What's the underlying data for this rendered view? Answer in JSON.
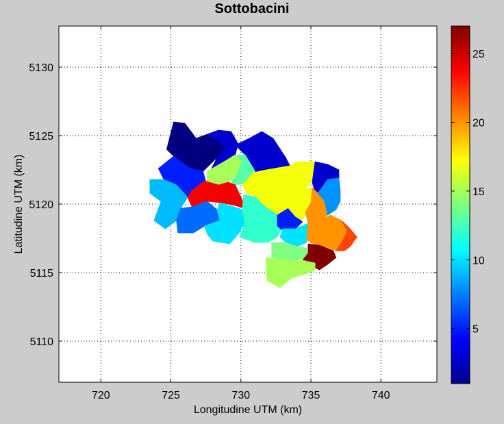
{
  "chart_data": {
    "type": "heatmap",
    "title": "Sottobacini",
    "xlabel": "Longitudine UTM (km)",
    "ylabel": "Latitudine UTM (km)",
    "xlim": [
      717,
      744
    ],
    "ylim": [
      5107,
      5133
    ],
    "xticks": [
      720,
      725,
      730,
      735,
      740
    ],
    "yticks": [
      5110,
      5115,
      5120,
      5125,
      5130
    ],
    "grid": true,
    "colorbar": {
      "colormap": "jet",
      "range": [
        1,
        27
      ],
      "ticks": [
        5,
        10,
        15,
        20,
        25
      ]
    },
    "regions": [
      {
        "id": 1,
        "value": 1,
        "polygon": [
          [
            725.2,
            5126
          ],
          [
            726,
            5125.9
          ],
          [
            726.8,
            5124.8
          ],
          [
            727.6,
            5125.1
          ],
          [
            728.6,
            5125.2
          ],
          [
            728.9,
            5124.2
          ],
          [
            728.3,
            5123.4
          ],
          [
            727.3,
            5122.4
          ],
          [
            726.4,
            5122.6
          ],
          [
            725.2,
            5123.5
          ],
          [
            724.7,
            5124
          ]
        ]
      },
      {
        "id": 2,
        "value": 3,
        "polygon": [
          [
            727.6,
            5125.1
          ],
          [
            728.4,
            5125.4
          ],
          [
            729.3,
            5125.3
          ],
          [
            729.8,
            5124.4
          ],
          [
            729.6,
            5123.6
          ],
          [
            728.8,
            5123.1
          ],
          [
            727.9,
            5122.6
          ],
          [
            728.3,
            5123.4
          ],
          [
            728.9,
            5124.2
          ]
        ]
      },
      {
        "id": 3,
        "value": 3,
        "polygon": [
          [
            729.6,
            5124.3
          ],
          [
            730.6,
            5124.8
          ],
          [
            731.5,
            5125.3
          ],
          [
            732.3,
            5124.8
          ],
          [
            733.2,
            5123.4
          ],
          [
            733.5,
            5122.8
          ],
          [
            732.8,
            5122.4
          ],
          [
            731.2,
            5122
          ],
          [
            730.9,
            5122.6
          ],
          [
            730.3,
            5123.6
          ]
        ]
      },
      {
        "id": 4,
        "value": 5,
        "polygon": [
          [
            724.1,
            5122.6
          ],
          [
            725.2,
            5123.5
          ],
          [
            726.4,
            5122.6
          ],
          [
            727.3,
            5122.4
          ],
          [
            727.6,
            5121.2
          ],
          [
            727,
            5120.8
          ],
          [
            726.2,
            5120.5
          ],
          [
            725.4,
            5121.4
          ],
          [
            724.5,
            5121.8
          ]
        ]
      },
      {
        "id": 5,
        "value": 15,
        "polygon": [
          [
            727.6,
            5122.4
          ],
          [
            728.8,
            5123.1
          ],
          [
            729.6,
            5123.6
          ],
          [
            730.1,
            5123.1
          ],
          [
            729.7,
            5122.1
          ],
          [
            729.1,
            5121.6
          ],
          [
            728.2,
            5121.4
          ],
          [
            727.6,
            5121.7
          ]
        ]
      },
      {
        "id": 6,
        "value": 13,
        "polygon": [
          [
            729.7,
            5123.6
          ],
          [
            730.3,
            5123.6
          ],
          [
            730.9,
            5122.6
          ],
          [
            731.2,
            5122
          ],
          [
            730.2,
            5121.5
          ],
          [
            729.6,
            5121.4
          ],
          [
            729.3,
            5121.6
          ],
          [
            729.7,
            5122.1
          ],
          [
            730.1,
            5123.1
          ]
        ]
      },
      {
        "id": 7,
        "value": 17,
        "polygon": [
          [
            730.9,
            5122.3
          ],
          [
            731.8,
            5122.5
          ],
          [
            733.5,
            5122.8
          ],
          [
            734,
            5123.1
          ],
          [
            735.3,
            5123.1
          ],
          [
            735.2,
            5121.8
          ],
          [
            734.6,
            5121.1
          ],
          [
            733.9,
            5120.6
          ],
          [
            733.4,
            5119.7
          ],
          [
            732.6,
            5119.2
          ],
          [
            731.5,
            5120
          ],
          [
            731.1,
            5120.5
          ],
          [
            730.4,
            5120.8
          ],
          [
            730.1,
            5121.4
          ]
        ]
      },
      {
        "id": 8,
        "value": 3,
        "polygon": [
          [
            735.3,
            5123.1
          ],
          [
            736.2,
            5122.9
          ],
          [
            737,
            5122.5
          ],
          [
            737,
            5121.9
          ],
          [
            736.4,
            5121.8
          ],
          [
            736,
            5121
          ],
          [
            735.3,
            5120.8
          ],
          [
            735.1,
            5121.6
          ]
        ]
      },
      {
        "id": 9,
        "value": 9,
        "polygon": [
          [
            723.5,
            5121.8
          ],
          [
            724.5,
            5121.8
          ],
          [
            725.4,
            5121.4
          ],
          [
            726.2,
            5120.5
          ],
          [
            725.7,
            5119.7
          ],
          [
            725.4,
            5118.8
          ],
          [
            724.6,
            5118.2
          ],
          [
            723.8,
            5118.8
          ],
          [
            724.3,
            5120.2
          ],
          [
            723.5,
            5120.8
          ]
        ]
      },
      {
        "id": 10,
        "value": 24,
        "polygon": [
          [
            726.5,
            5121
          ],
          [
            727.4,
            5121.7
          ],
          [
            728.4,
            5121.4
          ],
          [
            729.1,
            5121.6
          ],
          [
            729.6,
            5121.4
          ],
          [
            730.1,
            5120.3
          ],
          [
            730.2,
            5119.7
          ],
          [
            729.6,
            5119.9
          ],
          [
            728.6,
            5120.1
          ],
          [
            727.6,
            5120.2
          ],
          [
            726.5,
            5119.8
          ],
          [
            726.2,
            5120.5
          ]
        ]
      },
      {
        "id": 11,
        "value": 7,
        "polygon": [
          [
            726.5,
            5119.8
          ],
          [
            727.6,
            5120.2
          ],
          [
            728.3,
            5119.6
          ],
          [
            728.5,
            5118.8
          ],
          [
            727.4,
            5118.4
          ],
          [
            726.6,
            5117.9
          ],
          [
            725.5,
            5117.9
          ],
          [
            725.4,
            5118.8
          ],
          [
            725.7,
            5119.7
          ]
        ]
      },
      {
        "id": 12,
        "value": 10,
        "polygon": [
          [
            728.5,
            5120.1
          ],
          [
            729.5,
            5119.8
          ],
          [
            730.1,
            5119.6
          ],
          [
            730.3,
            5118.6
          ],
          [
            729.8,
            5117.8
          ],
          [
            729.2,
            5117.1
          ],
          [
            728,
            5117.3
          ],
          [
            727.6,
            5117.8
          ],
          [
            727.4,
            5118.4
          ],
          [
            728.5,
            5118.8
          ],
          [
            728.3,
            5119.6
          ]
        ]
      },
      {
        "id": 13,
        "value": 12,
        "polygon": [
          [
            730.2,
            5120.7
          ],
          [
            731.1,
            5120.5
          ],
          [
            731.5,
            5120
          ],
          [
            732.6,
            5119.2
          ],
          [
            733,
            5118.4
          ],
          [
            732.6,
            5117.6
          ],
          [
            731.9,
            5117.2
          ],
          [
            731,
            5117.2
          ],
          [
            729.9,
            5117.6
          ],
          [
            730.3,
            5118.6
          ],
          [
            730.1,
            5119.6
          ]
        ]
      },
      {
        "id": 14,
        "value": 5,
        "polygon": [
          [
            732.6,
            5119.2
          ],
          [
            733.4,
            5119.7
          ],
          [
            733.9,
            5119.1
          ],
          [
            734.4,
            5118.7
          ],
          [
            733.9,
            5118.2
          ],
          [
            733.1,
            5118
          ],
          [
            732.6,
            5118.4
          ]
        ]
      },
      {
        "id": 15,
        "value": 17,
        "polygon": [
          [
            733.9,
            5120.6
          ],
          [
            734.6,
            5121.1
          ],
          [
            735.2,
            5121.2
          ],
          [
            735,
            5120.1
          ],
          [
            734.7,
            5119.5
          ],
          [
            734.4,
            5118.8
          ],
          [
            733.9,
            5119.1
          ],
          [
            733.4,
            5119.7
          ]
        ]
      },
      {
        "id": 16,
        "value": 20,
        "polygon": [
          [
            735.1,
            5121.2
          ],
          [
            735.5,
            5120.8
          ],
          [
            736,
            5120.2
          ],
          [
            736.2,
            5119.2
          ],
          [
            735.6,
            5118.8
          ],
          [
            734.8,
            5118.6
          ],
          [
            734.6,
            5119.4
          ],
          [
            735,
            5120.1
          ]
        ]
      },
      {
        "id": 17,
        "value": 8,
        "polygon": [
          [
            736.2,
            5121.8
          ],
          [
            737,
            5121.9
          ],
          [
            737.1,
            5121
          ],
          [
            737.1,
            5120.2
          ],
          [
            736.8,
            5119.6
          ],
          [
            736.2,
            5119.2
          ],
          [
            736,
            5120.2
          ],
          [
            735.5,
            5120.8
          ]
        ]
      },
      {
        "id": 18,
        "value": 10,
        "polygon": [
          [
            733,
            5118.2
          ],
          [
            733.9,
            5118.2
          ],
          [
            734.8,
            5118.6
          ],
          [
            734.8,
            5117.8
          ],
          [
            734.7,
            5117.2
          ],
          [
            734,
            5116.9
          ],
          [
            733.2,
            5117.2
          ],
          [
            732.8,
            5117.6
          ]
        ]
      },
      {
        "id": 19,
        "value": 20,
        "polygon": [
          [
            734.8,
            5118.6
          ],
          [
            735.6,
            5118.8
          ],
          [
            736.4,
            5119.2
          ],
          [
            737.2,
            5118.8
          ],
          [
            737.6,
            5118
          ],
          [
            737.2,
            5117.2
          ],
          [
            736.8,
            5116.6
          ],
          [
            736,
            5116.9
          ],
          [
            735.2,
            5117.1
          ],
          [
            734.7,
            5117.4
          ]
        ]
      },
      {
        "id": 20,
        "value": 22,
        "polygon": [
          [
            737.2,
            5118.8
          ],
          [
            737.8,
            5118.2
          ],
          [
            738.3,
            5117.6
          ],
          [
            737.8,
            5116.9
          ],
          [
            737.4,
            5116.6
          ],
          [
            736.8,
            5116.6
          ],
          [
            737.2,
            5117.2
          ],
          [
            737.6,
            5118
          ]
        ]
      },
      {
        "id": 21,
        "value": 14,
        "polygon": [
          [
            732.2,
            5117.2
          ],
          [
            733.2,
            5117.2
          ],
          [
            734,
            5116.9
          ],
          [
            734.7,
            5116.8
          ],
          [
            734.8,
            5116.1
          ],
          [
            733.8,
            5115.9
          ],
          [
            733,
            5115.9
          ],
          [
            732.2,
            5116.1
          ]
        ]
      },
      {
        "id": 22,
        "value": 27,
        "polygon": [
          [
            734.8,
            5117.1
          ],
          [
            735.6,
            5117
          ],
          [
            736.6,
            5116.6
          ],
          [
            736.8,
            5116.1
          ],
          [
            736.2,
            5115.6
          ],
          [
            735.6,
            5115.2
          ],
          [
            734.9,
            5115.6
          ],
          [
            734.4,
            5115.9
          ],
          [
            734.8,
            5116.4
          ]
        ]
      },
      {
        "id": 23,
        "value": 15,
        "polygon": [
          [
            731.8,
            5116.1
          ],
          [
            733,
            5115.9
          ],
          [
            734.4,
            5115.9
          ],
          [
            735.3,
            5115.7
          ],
          [
            735.3,
            5115.2
          ],
          [
            734.6,
            5114.9
          ],
          [
            733.6,
            5114.6
          ],
          [
            732.8,
            5113.9
          ],
          [
            731.9,
            5114.4
          ],
          [
            731.8,
            5115.2
          ]
        ]
      }
    ]
  }
}
